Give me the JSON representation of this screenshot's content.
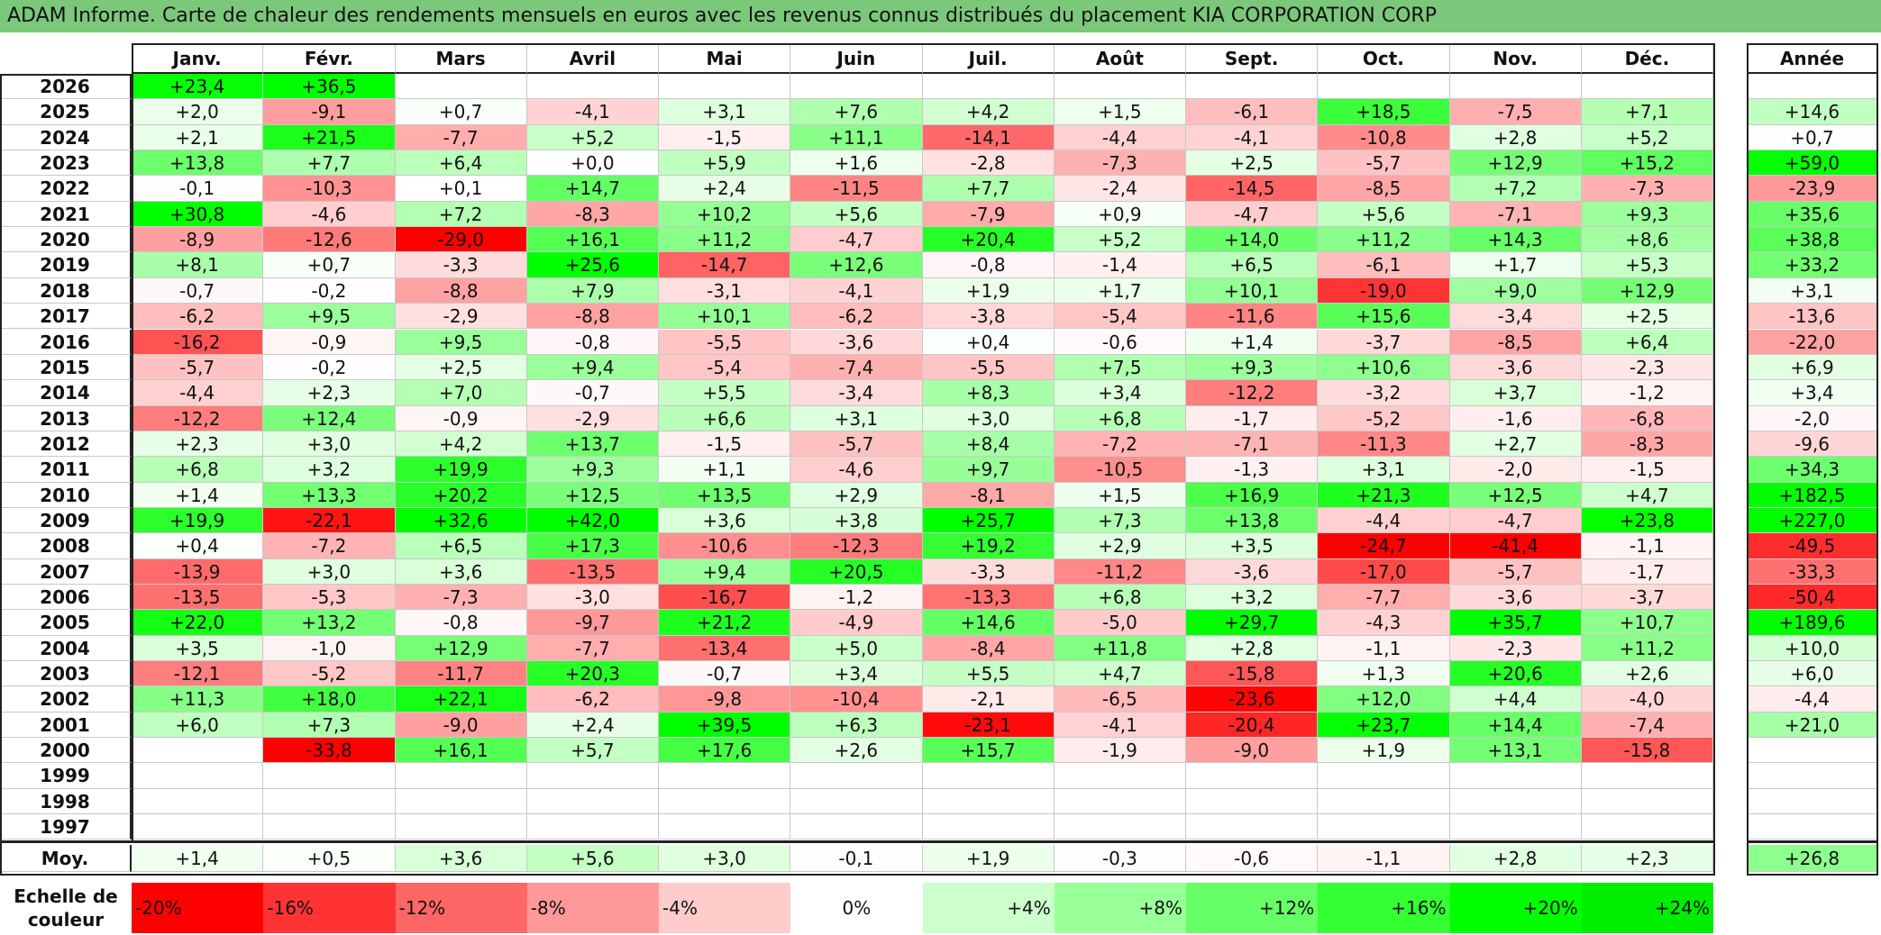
{
  "title": "ADAM Informe. Carte de chaleur des rendements mensuels en euros avec les revenus connus distribués du placement KIA CORPORATION CORP",
  "chart_data": {
    "type": "heatmap",
    "title": "ADAM Informe. Carte de chaleur des rendements mensuels en euros avec les revenus connus distribués du placement KIA CORPORATION CORP",
    "months": [
      "Janv.",
      "Févr.",
      "Mars",
      "Avril",
      "Mai",
      "Juin",
      "Juil.",
      "Août",
      "Sept.",
      "Oct.",
      "Nov.",
      "Déc."
    ],
    "year_header": "Année",
    "rows": [
      {
        "year": "2026",
        "values": [
          "+23,4",
          "+36,5",
          "",
          "",
          "",
          "",
          "",
          "",
          "",
          "",
          "",
          ""
        ],
        "annual": ""
      },
      {
        "year": "2025",
        "values": [
          "+2,0",
          "-9,1",
          "+0,7",
          "-4,1",
          "+3,1",
          "+7,6",
          "+4,2",
          "+1,5",
          "-6,1",
          "+18,5",
          "-7,5",
          "+7,1"
        ],
        "annual": "+14,6"
      },
      {
        "year": "2024",
        "values": [
          "+2,1",
          "+21,5",
          "-7,7",
          "+5,2",
          "-1,5",
          "+11,1",
          "-14,1",
          "-4,4",
          "-4,1",
          "-10,8",
          "+2,8",
          "+5,2"
        ],
        "annual": "+0,7"
      },
      {
        "year": "2023",
        "values": [
          "+13,8",
          "+7,7",
          "+6,4",
          "+0,0",
          "+5,9",
          "+1,6",
          "-2,8",
          "-7,3",
          "+2,5",
          "-5,7",
          "+12,9",
          "+15,2"
        ],
        "annual": "+59,0"
      },
      {
        "year": "2022",
        "values": [
          "-0,1",
          "-10,3",
          "+0,1",
          "+14,7",
          "+2,4",
          "-11,5",
          "+7,7",
          "-2,4",
          "-14,5",
          "-8,5",
          "+7,2",
          "-7,3"
        ],
        "annual": "-23,9"
      },
      {
        "year": "2021",
        "values": [
          "+30,8",
          "-4,6",
          "+7,2",
          "-8,3",
          "+10,2",
          "+5,6",
          "-7,9",
          "+0,9",
          "-4,7",
          "+5,6",
          "-7,1",
          "+9,3"
        ],
        "annual": "+35,6"
      },
      {
        "year": "2020",
        "values": [
          "-8,9",
          "-12,6",
          "-29,0",
          "+16,1",
          "+11,2",
          "-4,7",
          "+20,4",
          "+5,2",
          "+14,0",
          "+11,2",
          "+14,3",
          "+8,6"
        ],
        "annual": "+38,8"
      },
      {
        "year": "2019",
        "values": [
          "+8,1",
          "+0,7",
          "-3,3",
          "+25,6",
          "-14,7",
          "+12,6",
          "-0,8",
          "-1,4",
          "+6,5",
          "-6,1",
          "+1,7",
          "+5,3"
        ],
        "annual": "+33,2"
      },
      {
        "year": "2018",
        "values": [
          "-0,7",
          "-0,2",
          "-8,8",
          "+7,9",
          "-3,1",
          "-4,1",
          "+1,9",
          "+1,7",
          "+10,1",
          "-19,0",
          "+9,0",
          "+12,9"
        ],
        "annual": "+3,1"
      },
      {
        "year": "2017",
        "values": [
          "-6,2",
          "+9,5",
          "-2,9",
          "-8,8",
          "+10,1",
          "-6,2",
          "-3,8",
          "-5,4",
          "-11,6",
          "+15,6",
          "-3,4",
          "+2,5"
        ],
        "annual": "-13,6"
      },
      {
        "year": "2016",
        "values": [
          "-16,2",
          "-0,9",
          "+9,5",
          "-0,8",
          "-5,5",
          "-3,6",
          "+0,4",
          "-0,6",
          "+1,4",
          "-3,7",
          "-8,5",
          "+6,4"
        ],
        "annual": "-22,0"
      },
      {
        "year": "2015",
        "values": [
          "-5,7",
          "-0,2",
          "+2,5",
          "+9,4",
          "-5,4",
          "-7,4",
          "-5,5",
          "+7,5",
          "+9,3",
          "+10,6",
          "-3,6",
          "-2,3"
        ],
        "annual": "+6,9"
      },
      {
        "year": "2014",
        "values": [
          "-4,4",
          "+2,3",
          "+7,0",
          "-0,7",
          "+5,5",
          "-3,4",
          "+8,3",
          "+3,4",
          "-12,2",
          "-3,2",
          "+3,7",
          "-1,2"
        ],
        "annual": "+3,4"
      },
      {
        "year": "2013",
        "values": [
          "-12,2",
          "+12,4",
          "-0,9",
          "-2,9",
          "+6,6",
          "+3,1",
          "+3,0",
          "+6,8",
          "-1,7",
          "-5,2",
          "-1,6",
          "-6,8"
        ],
        "annual": "-2,0"
      },
      {
        "year": "2012",
        "values": [
          "+2,3",
          "+3,0",
          "+4,2",
          "+13,7",
          "-1,5",
          "-5,7",
          "+8,4",
          "-7,2",
          "-7,1",
          "-11,3",
          "+2,7",
          "-8,3"
        ],
        "annual": "-9,6"
      },
      {
        "year": "2011",
        "values": [
          "+6,8",
          "+3,2",
          "+19,9",
          "+9,3",
          "+1,1",
          "-4,6",
          "+9,7",
          "-10,5",
          "-1,3",
          "+3,1",
          "-2,0",
          "-1,5"
        ],
        "annual": "+34,3"
      },
      {
        "year": "2010",
        "values": [
          "+1,4",
          "+13,3",
          "+20,2",
          "+12,5",
          "+13,5",
          "+2,9",
          "-8,1",
          "+1,5",
          "+16,9",
          "+21,3",
          "+12,5",
          "+4,7"
        ],
        "annual": "+182,5"
      },
      {
        "year": "2009",
        "values": [
          "+19,9",
          "-22,1",
          "+32,6",
          "+42,0",
          "+3,6",
          "+3,8",
          "+25,7",
          "+7,3",
          "+13,8",
          "-4,4",
          "-4,7",
          "+23,8"
        ],
        "annual": "+227,0"
      },
      {
        "year": "2008",
        "values": [
          "+0,4",
          "-7,2",
          "+6,5",
          "+17,3",
          "-10,6",
          "-12,3",
          "+19,2",
          "+2,9",
          "+3,5",
          "-24,7",
          "-41,4",
          "-1,1"
        ],
        "annual": "-49,5"
      },
      {
        "year": "2007",
        "values": [
          "-13,9",
          "+3,0",
          "+3,6",
          "-13,5",
          "+9,4",
          "+20,5",
          "-3,3",
          "-11,2",
          "-3,6",
          "-17,0",
          "-5,7",
          "-1,7"
        ],
        "annual": "-33,3"
      },
      {
        "year": "2006",
        "values": [
          "-13,5",
          "-5,3",
          "-7,3",
          "-3,0",
          "-16,7",
          "-1,2",
          "-13,3",
          "+6,8",
          "+3,2",
          "-7,7",
          "-3,6",
          "-3,7"
        ],
        "annual": "-50,4"
      },
      {
        "year": "2005",
        "values": [
          "+22,0",
          "+13,2",
          "-0,8",
          "-9,7",
          "+21,2",
          "-4,9",
          "+14,6",
          "-5,0",
          "+29,7",
          "-4,3",
          "+35,7",
          "+10,7"
        ],
        "annual": "+189,6"
      },
      {
        "year": "2004",
        "values": [
          "+3,5",
          "-1,0",
          "+12,9",
          "-7,7",
          "-13,4",
          "+5,0",
          "-8,4",
          "+11,8",
          "+2,8",
          "-1,1",
          "-2,3",
          "+11,2"
        ],
        "annual": "+10,0"
      },
      {
        "year": "2003",
        "values": [
          "-12,1",
          "-5,2",
          "-11,7",
          "+20,3",
          "-0,7",
          "+3,4",
          "+5,5",
          "+4,7",
          "-15,8",
          "+1,3",
          "+20,6",
          "+2,6"
        ],
        "annual": "+6,0"
      },
      {
        "year": "2002",
        "values": [
          "+11,3",
          "+18,0",
          "+22,1",
          "-6,2",
          "-9,8",
          "-10,4",
          "-2,1",
          "-6,5",
          "-23,6",
          "+12,0",
          "+4,4",
          "-4,0"
        ],
        "annual": "-4,4"
      },
      {
        "year": "2001",
        "values": [
          "+6,0",
          "+7,3",
          "-9,0",
          "+2,4",
          "+39,5",
          "+6,3",
          "-23,1",
          "-4,1",
          "-20,4",
          "+23,7",
          "+14,4",
          "-7,4"
        ],
        "annual": "+21,0"
      },
      {
        "year": "2000",
        "values": [
          "",
          "-33,8",
          "+16,1",
          "+5,7",
          "+17,6",
          "+2,6",
          "+15,7",
          "-1,9",
          "-9,0",
          "+1,9",
          "+13,1",
          "-15,8"
        ],
        "annual": ""
      },
      {
        "year": "1999",
        "values": [
          "",
          "",
          "",
          "",
          "",
          "",
          "",
          "",
          "",
          "",
          "",
          ""
        ],
        "annual": ""
      },
      {
        "year": "1998",
        "values": [
          "",
          "",
          "",
          "",
          "",
          "",
          "",
          "",
          "",
          "",
          "",
          ""
        ],
        "annual": ""
      },
      {
        "year": "1997",
        "values": [
          "",
          "",
          "",
          "",
          "",
          "",
          "",
          "",
          "",
          "",
          "",
          ""
        ],
        "annual": ""
      }
    ],
    "average": {
      "label": "Moy.",
      "values": [
        "+1,4",
        "+0,5",
        "+3,6",
        "+5,6",
        "+3,0",
        "-0,1",
        "+1,9",
        "-0,3",
        "-0,6",
        "-1,1",
        "+2,8",
        "+2,3"
      ],
      "annual": "+26,8"
    },
    "color_scale": {
      "label": "Echelle de couleur",
      "steps": [
        {
          "label": "-20%",
          "color": "#ff0000"
        },
        {
          "label": "-16%",
          "color": "#ff3333"
        },
        {
          "label": "-12%",
          "color": "#ff6666"
        },
        {
          "label": "-8%",
          "color": "#ff9999"
        },
        {
          "label": "-4%",
          "color": "#ffcccc"
        },
        {
          "label": "0%",
          "color": "#ffffff"
        },
        {
          "label": "+4%",
          "color": "#ccffcc"
        },
        {
          "label": "+8%",
          "color": "#99ff99"
        },
        {
          "label": "+12%",
          "color": "#66ff66"
        },
        {
          "label": "+16%",
          "color": "#33ff33"
        },
        {
          "label": "+20%",
          "color": "#00ff00"
        },
        {
          "label": "+24%",
          "color": "#00ee00"
        }
      ]
    }
  },
  "colors": {
    "title_bg": "#7cc87b",
    "positive_max": "#00ff00",
    "negative_max": "#ff0000",
    "neutral": "#ffffff"
  }
}
